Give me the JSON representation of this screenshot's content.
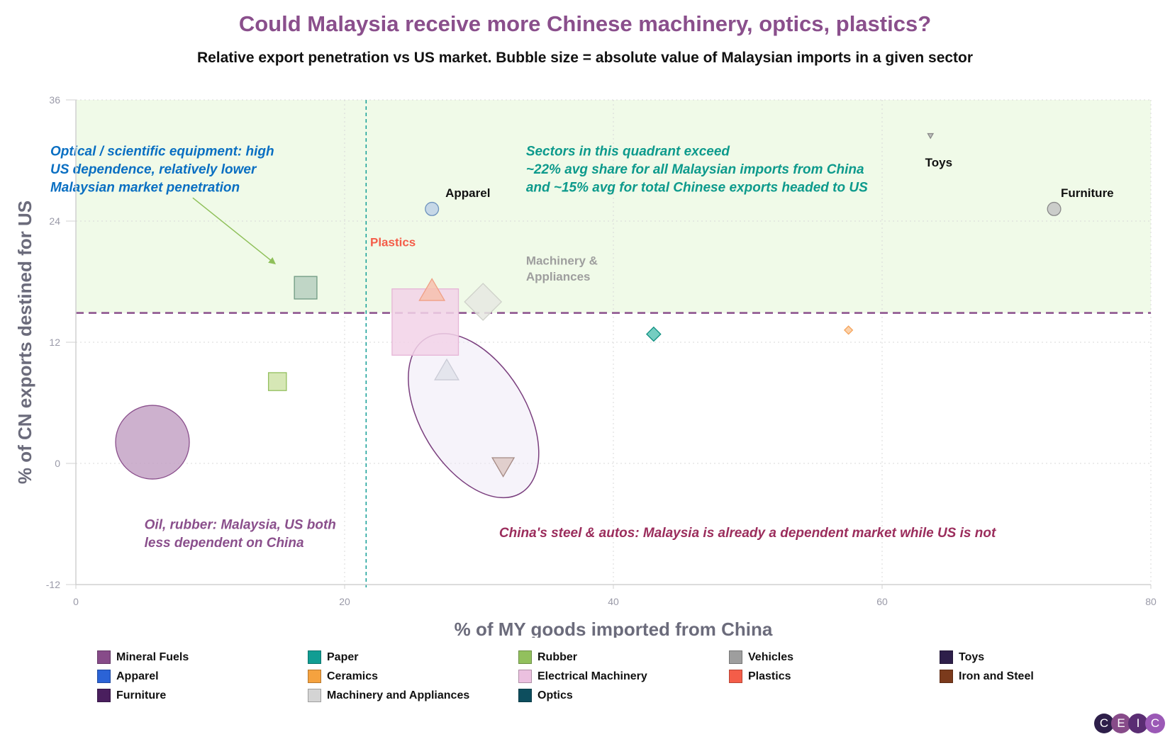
{
  "header": {
    "title": "Could Malaysia receive more Chinese machinery, optics, plastics?",
    "subtitle": "Relative export penetration vs US market. Bubble size = absolute value of Malaysian imports in a given sector"
  },
  "chart_data": {
    "type": "scatter",
    "title": "Could Malaysia receive more Chinese machinery, optics, plastics?",
    "subtitle": "Relative export penetration vs US market. Bubble size = absolute value of Malaysian imports in a given sector",
    "xlabel": "% of MY goods imported from China",
    "ylabel": "% of CN exports destined for US",
    "xlim": [
      0,
      80
    ],
    "ylim": [
      -12,
      36
    ],
    "x_ticks": [
      0,
      20,
      40,
      60,
      80
    ],
    "y_ticks": [
      -12,
      0,
      12,
      24,
      36
    ],
    "grid": true,
    "legend_position": "bottom",
    "reference_lines": {
      "x": 21.6,
      "y": 14.9
    },
    "highlight_quadrant": {
      "x_from": 21.6,
      "y_from": 14.9,
      "color": "#f0fae8"
    },
    "series": [
      {
        "name": "Mineral Fuels",
        "x": 5.7,
        "y": 2.1,
        "size": 1.0,
        "shape": "circle",
        "color": "#c4a3c6",
        "stroke": "#8a4f8c"
      },
      {
        "name": "Paper",
        "x": 43.0,
        "y": 12.8,
        "size": 0.19,
        "shape": "diamond",
        "color": "#5cc4b6",
        "stroke": "#0d8f80"
      },
      {
        "name": "Rubber",
        "x": 15.0,
        "y": 8.1,
        "size": 0.27,
        "shape": "square",
        "color": "#cfe3a8",
        "stroke": "#94bf5f"
      },
      {
        "name": "Vehicles",
        "x": 63.6,
        "y": 32.5,
        "size": 0.08,
        "shape": "triangle-down",
        "color": "#b5b5b5",
        "stroke": "#8a8a8a"
      },
      {
        "name": "Toys",
        "x": 72.8,
        "y": 25.2,
        "size": 0.18,
        "shape": "circle",
        "color": "#c4c4c4",
        "stroke": "#8a8a8a"
      },
      {
        "name": "Apparel",
        "x": 26.5,
        "y": 25.2,
        "size": 0.18,
        "shape": "circle",
        "color": "#bed1e6",
        "stroke": "#6e93bd"
      },
      {
        "name": "Ceramics",
        "x": 57.5,
        "y": 13.2,
        "size": 0.11,
        "shape": "diamond",
        "color": "#fac99b",
        "stroke": "#f5a35a"
      },
      {
        "name": "Electrical Machinery",
        "x": 26.0,
        "y": 14.0,
        "size": 1.0,
        "shape": "square",
        "color": "#f2d2e8",
        "stroke": "#e6b5d6"
      },
      {
        "name": "Plastics",
        "x": 26.5,
        "y": 16.9,
        "size": 0.38,
        "shape": "triangle",
        "color": "#f7bfae",
        "stroke": "#f0a085"
      },
      {
        "name": "Iron and Steel",
        "x": 31.8,
        "y": -0.1,
        "size": 0.33,
        "shape": "triangle-down",
        "color": "#ddc8c4",
        "stroke": "#a58a85"
      },
      {
        "name": "Furniture",
        "x": 17.1,
        "y": 17.4,
        "size": 0.34,
        "shape": "square",
        "color": "#b7cfc0",
        "stroke": "#6f9a82"
      },
      {
        "name": "Machinery and Appliances",
        "x": 30.3,
        "y": 16.0,
        "size": 0.5,
        "shape": "diamond",
        "color": "#e6e8e2",
        "stroke": "#cfd2ca"
      },
      {
        "name": "Optics",
        "x": 27.6,
        "y": 9.0,
        "size": 0.36,
        "shape": "triangle",
        "color": "#e1e2ea",
        "stroke": "#cacbd6"
      }
    ],
    "point_labels": [
      {
        "text": "Apparel",
        "x": 27.5,
        "y": 26.4
      },
      {
        "text": "Toys",
        "x": 63.2,
        "y": 29.4
      },
      {
        "text": "Furniture",
        "x": 73.3,
        "y": 26.4
      },
      {
        "text": "Plastics",
        "x": 21.9,
        "y": 21.5
      },
      {
        "text": "Machinery &",
        "x": 33.5,
        "y": 19.7
      },
      {
        "text": "Appliances",
        "x": 33.5,
        "y": 18.1
      }
    ],
    "annotations": [
      {
        "lines": [
          "Optical / scientific equipment: high",
          "US dependence, relatively lower",
          "Malaysian market penetration"
        ],
        "x": -1.9,
        "y": 30.5,
        "color": "#0a6fc2"
      },
      {
        "lines": [
          "Sectors in this quadrant exceed",
          "~22% avg share for all Malaysian imports from China",
          "and ~15% avg for total Chinese exports headed to US"
        ],
        "x": 33.5,
        "y": 30.5,
        "color": "#0d9a8c"
      },
      {
        "lines": [
          "Oil, rubber: Malaysia, US both",
          "less dependent on China"
        ],
        "x": 5.1,
        "y": -6.5,
        "color": "#8a4f8c"
      },
      {
        "lines": [
          "China's steel & autos: Malaysia is already a dependent market while US is not"
        ],
        "x": 31.5,
        "y": -7.3,
        "color": "#9b2d5c"
      }
    ]
  },
  "legend": {
    "items": [
      {
        "label": "Mineral Fuels",
        "color": "#874b89"
      },
      {
        "label": "Paper",
        "color": "#119d93"
      },
      {
        "label": "Rubber",
        "color": "#92c05d"
      },
      {
        "label": "Vehicles",
        "color": "#9e9e9e"
      },
      {
        "label": "Toys",
        "color": "#2e1f4a"
      },
      {
        "label": "Apparel",
        "color": "#2b63d6"
      },
      {
        "label": "Ceramics",
        "color": "#f5a23f"
      },
      {
        "label": "Electrical Machinery",
        "color": "#ebc0df"
      },
      {
        "label": "Plastics",
        "color": "#f45d49"
      },
      {
        "label": "Iron and Steel",
        "color": "#7b3a1c"
      },
      {
        "label": "Furniture",
        "color": "#4a1f5e"
      },
      {
        "label": "Machinery and Appliances",
        "color": "#d4d4d4"
      },
      {
        "label": "Optics",
        "color": "#0d4e5e"
      }
    ]
  },
  "logo": {
    "letters": [
      "C",
      "E",
      "I",
      "C"
    ],
    "colors": [
      "#2e1f4a",
      "#874b89",
      "#5a2d73",
      "#9b59b6"
    ]
  }
}
